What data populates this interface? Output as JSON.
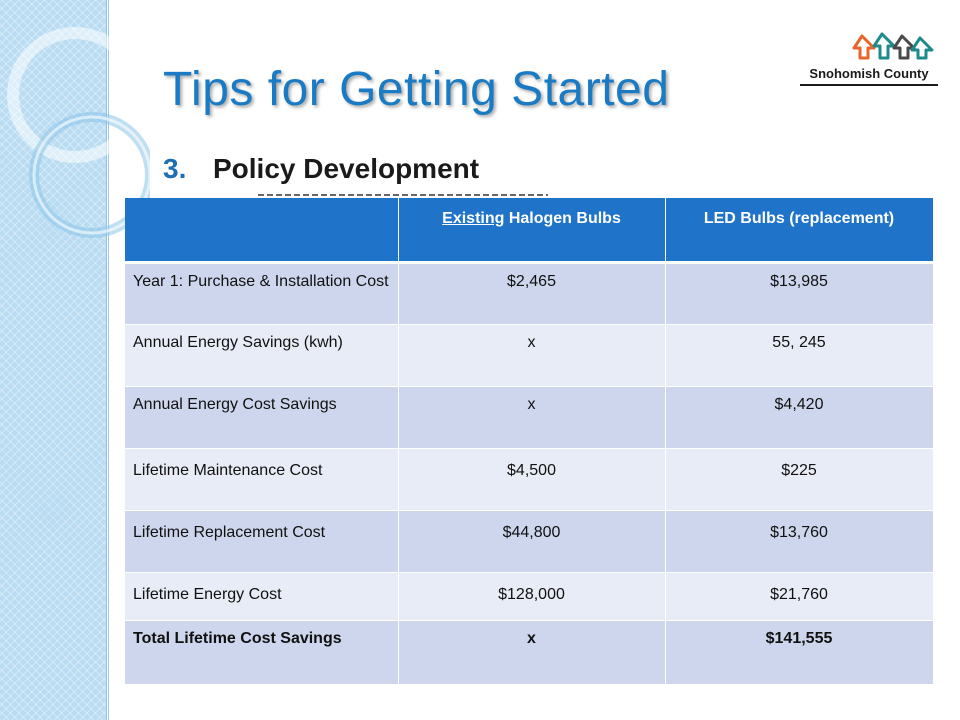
{
  "slide": {
    "title": "Tips for Getting Started",
    "point_number": "3.",
    "point_text": "Policy Development"
  },
  "logo": {
    "name": "Snohomish County",
    "colors": [
      "#e8662a",
      "#1f8a8a",
      "#4a4a4a"
    ]
  },
  "table": {
    "headers": {
      "blank": "",
      "col1_underlined": "Existing",
      "col1_rest": " Halogen Bulbs",
      "col2": "LED Bulbs (replacement)"
    },
    "rows": [
      {
        "label": "Year 1: Purchase & Installation Cost",
        "existing": "$2,465",
        "led": "$13,985"
      },
      {
        "label": "Annual Energy Savings (kwh)",
        "existing": "x",
        "led": "55, 245"
      },
      {
        "label": "Annual Energy Cost Savings",
        "existing": "x",
        "led": "$4,420"
      },
      {
        "label": "Lifetime Maintenance Cost",
        "existing": "$4,500",
        "led": "$225"
      },
      {
        "label": "Lifetime Replacement Cost",
        "existing": "$44,800",
        "led": "$13,760"
      },
      {
        "label": "Lifetime Energy Cost",
        "existing": "$128,000",
        "led": "$21,760"
      },
      {
        "label": "Total Lifetime Cost Savings",
        "existing": "x",
        "led": "$141,555"
      }
    ]
  },
  "colors": {
    "title": "#1a7bc4",
    "header_bg": "#1f74c9",
    "row_odd": "#cdd6ec",
    "row_even": "#e8ecf6",
    "side_bar": "#b9dcf2"
  }
}
